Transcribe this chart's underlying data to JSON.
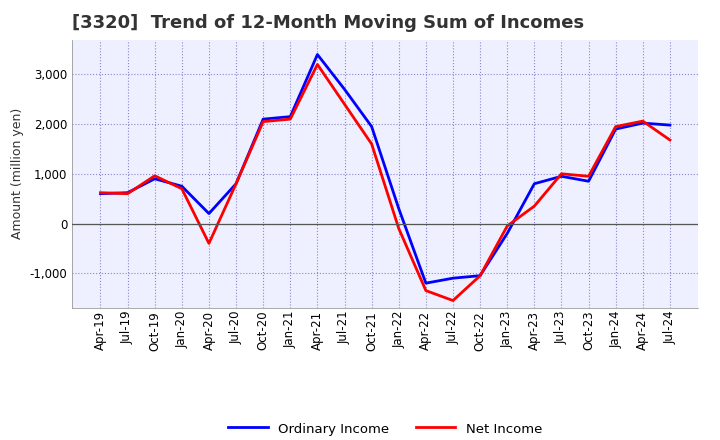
{
  "title": "[3320]  Trend of 12-Month Moving Sum of Incomes",
  "ylabel": "Amount (million yen)",
  "x_labels": [
    "Apr-19",
    "Jul-19",
    "Oct-19",
    "Jan-20",
    "Apr-20",
    "Jul-20",
    "Oct-20",
    "Jan-21",
    "Apr-21",
    "Jul-21",
    "Oct-21",
    "Jan-22",
    "Apr-22",
    "Jul-22",
    "Oct-22",
    "Jan-23",
    "Apr-23",
    "Jul-23",
    "Oct-23",
    "Jan-24",
    "Apr-24",
    "Jul-24"
  ],
  "ordinary_income": [
    600,
    620,
    900,
    750,
    200,
    800,
    2100,
    2150,
    3400,
    2700,
    1950,
    300,
    -1200,
    -1100,
    -1050,
    -200,
    800,
    950,
    850,
    1900,
    2020,
    1980
  ],
  "net_income": [
    620,
    600,
    960,
    700,
    -400,
    800,
    2050,
    2100,
    3200,
    2400,
    1600,
    -100,
    -1350,
    -1550,
    -1050,
    -50,
    350,
    1000,
    950,
    1950,
    2060,
    1680
  ],
  "ordinary_income_color": "#0000FF",
  "net_income_color": "#FF0000",
  "background_color": "#FFFFFF",
  "plot_bg_color": "#EEF0FF",
  "grid_color": "#8888CC",
  "zero_line_color": "#555555",
  "title_color": "#333333",
  "ylim": [
    -1700,
    3700
  ],
  "yticks": [
    -1000,
    0,
    1000,
    2000,
    3000
  ],
  "legend_labels": [
    "Ordinary Income",
    "Net Income"
  ],
  "line_width": 2.0,
  "title_fontsize": 13,
  "label_fontsize": 9,
  "tick_fontsize": 8.5
}
